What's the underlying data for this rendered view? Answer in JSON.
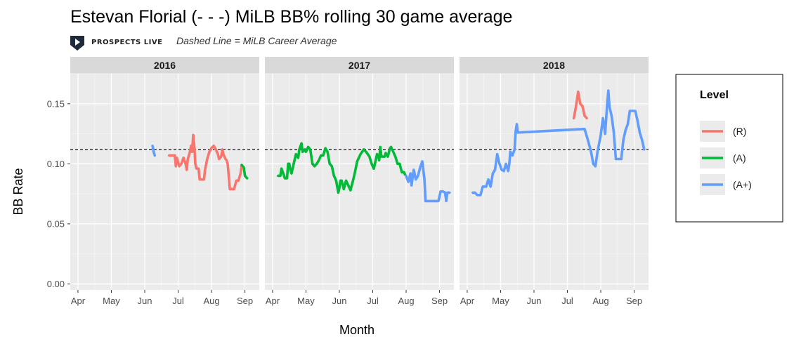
{
  "header": {
    "title": "Estevan Florial (- - -) MiLB BB% rolling 30 game average",
    "brand": "PROSPECTS LIVE",
    "subtitle": "Dashed Line = MiLB Career Average"
  },
  "chart_data": {
    "type": "line",
    "xlabel": "Month",
    "ylabel": "BB Rate",
    "ylim": [
      -0.005,
      0.175
    ],
    "y_ticks": [
      0.0,
      0.05,
      0.1,
      0.15
    ],
    "y_tick_labels": [
      "0.00",
      "0.05",
      "0.10",
      "0.15"
    ],
    "x_tick_labels": [
      "Apr",
      "May",
      "Jun",
      "Jul",
      "Aug",
      "Sep"
    ],
    "career_average": 0.112,
    "grid": true,
    "legend_position": "right",
    "legend_title": "Level",
    "levels": [
      {
        "name": "(R)",
        "color": "#F8766D"
      },
      {
        "name": "(A)",
        "color": "#00BA38"
      },
      {
        "name": "(A+)",
        "color": "#619CFF"
      }
    ],
    "panels": [
      {
        "label": "2016",
        "series": [
          {
            "level": "(A+)",
            "points": [
              [
                "2016-06-08",
                0.115
              ],
              [
                "2016-06-09",
                0.11
              ],
              [
                "2016-06-10",
                0.107
              ]
            ]
          },
          {
            "level": "(R)",
            "points": [
              [
                "2016-06-23",
                0.107
              ],
              [
                "2016-06-28",
                0.107
              ],
              [
                "2016-06-29",
                0.098
              ],
              [
                "2016-06-30",
                0.105
              ],
              [
                "2016-07-02",
                0.098
              ],
              [
                "2016-07-04",
                0.1
              ],
              [
                "2016-07-06",
                0.105
              ],
              [
                "2016-07-08",
                0.1
              ],
              [
                "2016-07-09",
                0.095
              ],
              [
                "2016-07-10",
                0.104
              ],
              [
                "2016-07-12",
                0.11
              ],
              [
                "2016-07-13",
                0.115
              ],
              [
                "2016-07-14",
                0.11
              ],
              [
                "2016-07-15",
                0.124
              ],
              [
                "2016-07-16",
                0.115
              ],
              [
                "2016-07-17",
                0.1
              ],
              [
                "2016-07-18",
                0.096
              ],
              [
                "2016-07-20",
                0.096
              ],
              [
                "2016-07-21",
                0.087
              ],
              [
                "2016-07-25",
                0.087
              ],
              [
                "2016-07-26",
                0.095
              ],
              [
                "2016-07-28",
                0.104
              ],
              [
                "2016-07-30",
                0.11
              ],
              [
                "2016-08-01",
                0.113
              ],
              [
                "2016-08-03",
                0.115
              ],
              [
                "2016-08-05",
                0.112
              ],
              [
                "2016-08-07",
                0.108
              ],
              [
                "2016-08-08",
                0.104
              ],
              [
                "2016-08-10",
                0.106
              ],
              [
                "2016-08-11",
                0.112
              ],
              [
                "2016-08-12",
                0.108
              ],
              [
                "2016-08-14",
                0.104
              ],
              [
                "2016-08-15",
                0.103
              ],
              [
                "2016-08-16",
                0.1
              ],
              [
                "2016-08-17",
                0.09
              ],
              [
                "2016-08-18",
                0.079
              ],
              [
                "2016-08-20",
                0.079
              ],
              [
                "2016-08-22",
                0.079
              ],
              [
                "2016-08-24",
                0.086
              ],
              [
                "2016-08-26",
                0.086
              ],
              [
                "2016-08-28",
                0.092
              ],
              [
                "2016-08-29",
                0.099
              ]
            ]
          },
          {
            "level": "(A)",
            "points": [
              [
                "2016-08-29",
                0.099
              ],
              [
                "2016-08-31",
                0.097
              ],
              [
                "2016-09-01",
                0.09
              ],
              [
                "2016-09-03",
                0.088
              ]
            ]
          }
        ]
      },
      {
        "label": "2017",
        "series": [
          {
            "level": "(A)",
            "points": [
              [
                "2017-04-06",
                0.09
              ],
              [
                "2017-04-08",
                0.09
              ],
              [
                "2017-04-09",
                0.096
              ],
              [
                "2017-04-11",
                0.091
              ],
              [
                "2017-04-12",
                0.088
              ],
              [
                "2017-04-14",
                0.088
              ],
              [
                "2017-04-15",
                0.1
              ],
              [
                "2017-04-16",
                0.1
              ],
              [
                "2017-04-17",
                0.095
              ],
              [
                "2017-04-18",
                0.092
              ],
              [
                "2017-04-20",
                0.1
              ],
              [
                "2017-04-22",
                0.108
              ],
              [
                "2017-04-24",
                0.105
              ],
              [
                "2017-04-25",
                0.112
              ],
              [
                "2017-04-27",
                0.117
              ],
              [
                "2017-04-28",
                0.11
              ],
              [
                "2017-04-30",
                0.112
              ],
              [
                "2017-05-01",
                0.11
              ],
              [
                "2017-05-03",
                0.114
              ],
              [
                "2017-05-05",
                0.112
              ],
              [
                "2017-05-07",
                0.1
              ],
              [
                "2017-05-09",
                0.098
              ],
              [
                "2017-05-11",
                0.1
              ],
              [
                "2017-05-13",
                0.103
              ],
              [
                "2017-05-15",
                0.107
              ],
              [
                "2017-05-17",
                0.107
              ],
              [
                "2017-05-19",
                0.113
              ],
              [
                "2017-05-21",
                0.11
              ],
              [
                "2017-05-23",
                0.1
              ],
              [
                "2017-05-25",
                0.098
              ],
              [
                "2017-05-27",
                0.09
              ],
              [
                "2017-05-29",
                0.086
              ],
              [
                "2017-05-31",
                0.076
              ],
              [
                "2017-06-01",
                0.08
              ],
              [
                "2017-06-02",
                0.086
              ],
              [
                "2017-06-03",
                0.086
              ],
              [
                "2017-06-05",
                0.079
              ],
              [
                "2017-06-07",
                0.086
              ],
              [
                "2017-06-09",
                0.082
              ],
              [
                "2017-06-11",
                0.078
              ],
              [
                "2017-06-13",
                0.085
              ],
              [
                "2017-06-15",
                0.093
              ],
              [
                "2017-06-17",
                0.102
              ],
              [
                "2017-06-20",
                0.108
              ],
              [
                "2017-06-23",
                0.112
              ],
              [
                "2017-06-25",
                0.11
              ],
              [
                "2017-06-28",
                0.106
              ],
              [
                "2017-06-30",
                0.1
              ],
              [
                "2017-07-02",
                0.096
              ],
              [
                "2017-07-03",
                0.1
              ],
              [
                "2017-07-05",
                0.108
              ],
              [
                "2017-07-06",
                0.107
              ],
              [
                "2017-07-07",
                0.103
              ],
              [
                "2017-07-08",
                0.114
              ],
              [
                "2017-07-09",
                0.106
              ],
              [
                "2017-07-12",
                0.106
              ],
              [
                "2017-07-13",
                0.109
              ],
              [
                "2017-07-15",
                0.106
              ],
              [
                "2017-07-17",
                0.113
              ],
              [
                "2017-07-18",
                0.114
              ],
              [
                "2017-07-20",
                0.11
              ],
              [
                "2017-07-22",
                0.106
              ],
              [
                "2017-07-24",
                0.1
              ],
              [
                "2017-07-26",
                0.1
              ],
              [
                "2017-07-28",
                0.093
              ],
              [
                "2017-07-30",
                0.093
              ],
              [
                "2017-07-31",
                0.091
              ]
            ]
          },
          {
            "level": "(A+)",
            "points": [
              [
                "2017-08-01",
                0.09
              ],
              [
                "2017-08-03",
                0.085
              ],
              [
                "2017-08-05",
                0.092
              ],
              [
                "2017-08-06",
                0.082
              ],
              [
                "2017-08-08",
                0.095
              ],
              [
                "2017-08-10",
                0.087
              ],
              [
                "2017-08-12",
                0.09
              ],
              [
                "2017-08-14",
                0.097
              ],
              [
                "2017-08-16",
                0.102
              ],
              [
                "2017-08-18",
                0.087
              ],
              [
                "2017-08-19",
                0.069
              ],
              [
                "2017-08-25",
                0.069
              ],
              [
                "2017-08-31",
                0.069
              ],
              [
                "2017-09-02",
                0.077
              ],
              [
                "2017-09-04",
                0.077
              ],
              [
                "2017-09-06",
                0.076
              ],
              [
                "2017-09-07",
                0.069
              ],
              [
                "2017-09-08",
                0.076
              ],
              [
                "2017-09-10",
                0.076
              ]
            ]
          }
        ]
      },
      {
        "label": "2018",
        "series": [
          {
            "level": "(A+)",
            "points": [
              [
                "2018-04-06",
                0.076
              ],
              [
                "2018-04-08",
                0.076
              ],
              [
                "2018-04-10",
                0.074
              ],
              [
                "2018-04-13",
                0.074
              ],
              [
                "2018-04-15",
                0.081
              ],
              [
                "2018-04-18",
                0.081
              ],
              [
                "2018-04-20",
                0.087
              ],
              [
                "2018-04-22",
                0.081
              ],
              [
                "2018-04-24",
                0.092
              ],
              [
                "2018-04-26",
                0.095
              ],
              [
                "2018-04-28",
                0.108
              ],
              [
                "2018-04-30",
                0.1
              ],
              [
                "2018-05-02",
                0.095
              ],
              [
                "2018-05-04",
                0.094
              ],
              [
                "2018-05-06",
                0.1
              ],
              [
                "2018-05-08",
                0.094
              ],
              [
                "2018-05-09",
                0.099
              ],
              [
                "2018-05-10",
                0.11
              ],
              [
                "2018-05-12",
                0.107
              ],
              [
                "2018-05-14",
                0.112
              ],
              [
                "2018-05-15",
                0.127
              ],
              [
                "2018-05-16",
                0.133
              ],
              [
                "2018-05-17",
                0.126
              ],
              [
                "2018-07-17",
                0.129
              ],
              [
                "2018-07-20",
                0.12
              ],
              [
                "2018-07-23",
                0.11
              ],
              [
                "2018-07-25",
                0.1
              ],
              [
                "2018-07-27",
                0.098
              ],
              [
                "2018-07-29",
                0.11
              ],
              [
                "2018-08-01",
                0.124
              ],
              [
                "2018-08-03",
                0.138
              ],
              [
                "2018-08-05",
                0.125
              ],
              [
                "2018-08-07",
                0.15
              ],
              [
                "2018-08-08",
                0.161
              ],
              [
                "2018-08-09",
                0.148
              ],
              [
                "2018-08-11",
                0.14
              ],
              [
                "2018-08-13",
                0.127
              ],
              [
                "2018-08-15",
                0.104
              ],
              [
                "2018-08-20",
                0.104
              ],
              [
                "2018-08-22",
                0.12
              ],
              [
                "2018-08-24",
                0.128
              ],
              [
                "2018-08-26",
                0.133
              ],
              [
                "2018-08-28",
                0.144
              ],
              [
                "2018-09-02",
                0.144
              ],
              [
                "2018-09-04",
                0.136
              ],
              [
                "2018-09-06",
                0.126
              ],
              [
                "2018-09-08",
                0.12
              ],
              [
                "2018-09-10",
                0.112
              ]
            ]
          },
          {
            "level": "(R)",
            "points": [
              [
                "2018-07-07",
                0.138
              ],
              [
                "2018-07-09",
                0.148
              ],
              [
                "2018-07-11",
                0.16
              ],
              [
                "2018-07-13",
                0.15
              ],
              [
                "2018-07-15",
                0.148
              ],
              [
                "2018-07-17",
                0.14
              ],
              [
                "2018-07-19",
                0.138
              ]
            ]
          }
        ]
      }
    ]
  }
}
